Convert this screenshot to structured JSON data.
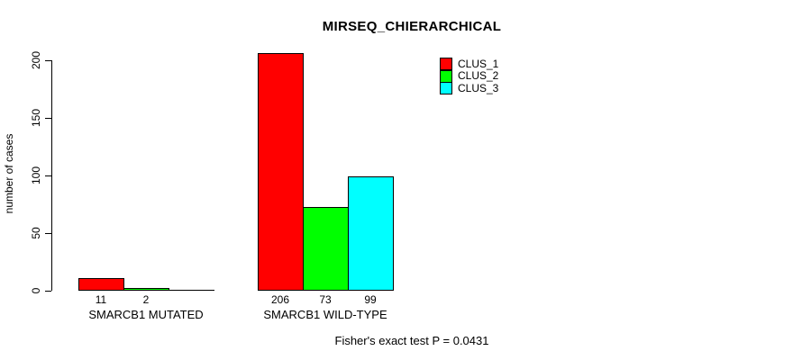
{
  "chart_data": {
    "type": "bar",
    "title": "MIRSEQ_CHIERARCHICAL",
    "ylabel": "number of cases",
    "xlabel": "",
    "categories": [
      "SMARCB1 MUTATED",
      "SMARCB1 WILD-TYPE"
    ],
    "series": [
      {
        "name": "CLUS_1",
        "color": "#ff0000",
        "values": [
          11,
          206
        ]
      },
      {
        "name": "CLUS_2",
        "color": "#00ff00",
        "values": [
          2,
          73
        ]
      },
      {
        "name": "CLUS_3",
        "color": "#00ffff",
        "values": [
          0,
          99
        ]
      }
    ],
    "bar_value_labels": [
      [
        "11",
        "2",
        ""
      ],
      [
        "206",
        "73",
        "99"
      ]
    ],
    "yticks": [
      0,
      50,
      100,
      150,
      200
    ],
    "ylim": [
      0,
      206
    ],
    "grid": false,
    "legend_position": "top-right",
    "legend_entries": [
      "CLUS_1",
      "CLUS_2",
      "CLUS_3"
    ],
    "annotation": "Fisher's exact test P = 0.0431"
  }
}
